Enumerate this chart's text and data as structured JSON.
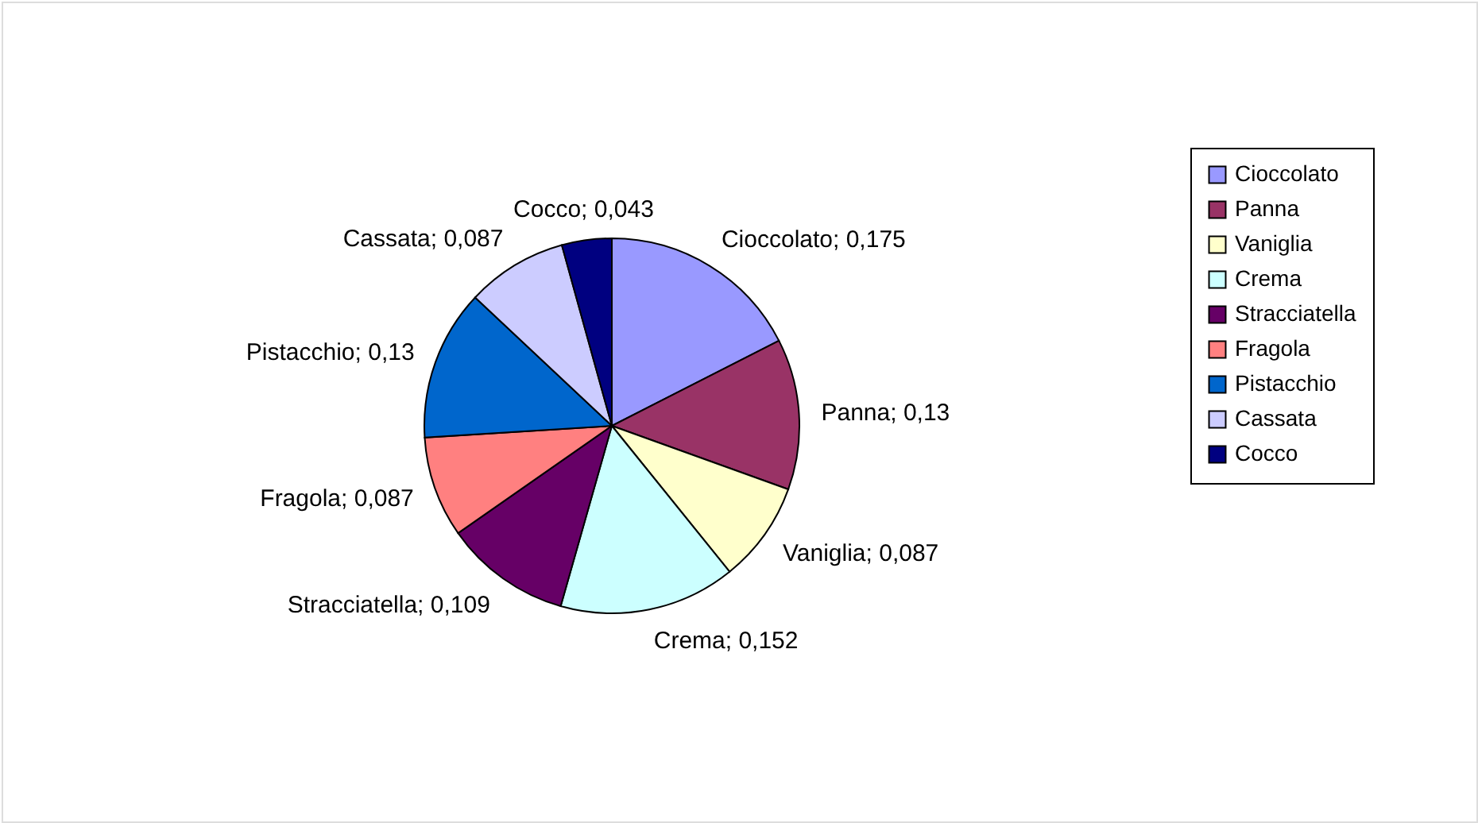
{
  "chart_data": {
    "type": "pie",
    "categories": [
      "Cioccolato",
      "Panna",
      "Vaniglia",
      "Crema",
      "Stracciatella",
      "Fragola",
      "Pistacchio",
      "Cassata",
      "Cocco"
    ],
    "values": [
      0.175,
      0.13,
      0.087,
      0.152,
      0.109,
      0.087,
      0.13,
      0.087,
      0.043
    ],
    "value_labels": [
      "Cioccolato; 0,175",
      "Panna; 0,13",
      "Vaniglia; 0,087",
      "Crema; 0,152",
      "Stracciatella; 0,109",
      "Fragola; 0,087",
      "Pistacchio; 0,13",
      "Cassata; 0,087",
      "Cocco; 0,043"
    ],
    "colors": [
      "#9999ff",
      "#993366",
      "#ffffcc",
      "#ccffff",
      "#660066",
      "#ff8080",
      "#0066cc",
      "#ccccff",
      "#000080"
    ],
    "legend": "right"
  }
}
